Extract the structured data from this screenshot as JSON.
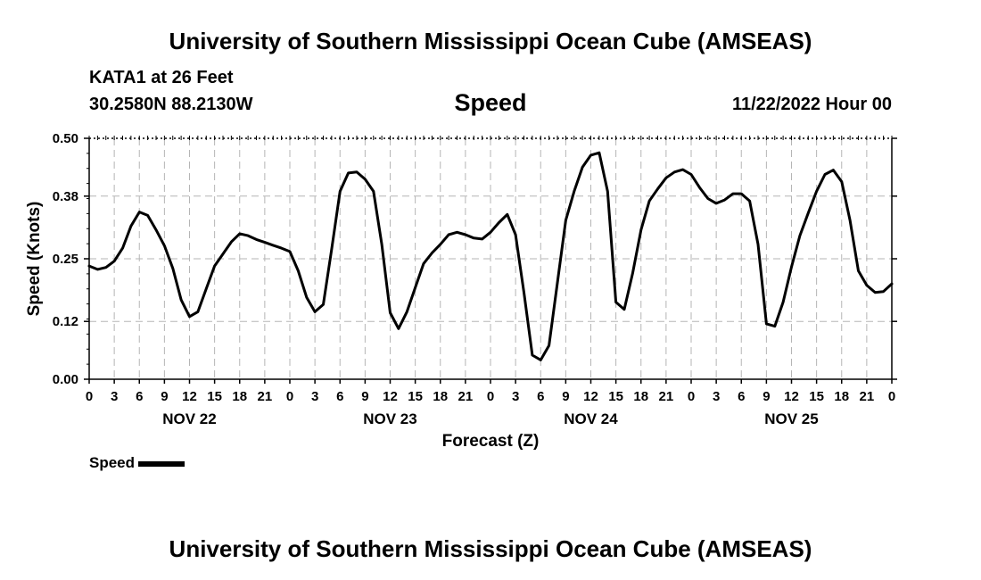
{
  "header": {
    "title_top": "University of Southern Mississippi Ocean Cube (AMSEAS)",
    "title_bottom": "University of Southern Mississippi Ocean Cube (AMSEAS)",
    "station": "KATA1 at 26 Feet",
    "coords": "30.2580N  88.2130W",
    "datetime": "11/22/2022 Hour 00"
  },
  "legend": {
    "label": "Speed"
  },
  "chart_data": {
    "type": "line",
    "title": "Speed",
    "xlabel": "Forecast (Z)",
    "ylabel": "Speed (Knots)",
    "ylim": [
      0,
      0.5
    ],
    "yticks": [
      0.0,
      0.12,
      0.25,
      0.38,
      0.5
    ],
    "ytick_labels": [
      "0.00",
      "0.12",
      "0.25",
      "0.38",
      "0.50"
    ],
    "xlim": [
      0,
      96
    ],
    "xticks": [
      0,
      3,
      6,
      9,
      12,
      15,
      18,
      21,
      24,
      27,
      30,
      33,
      36,
      39,
      42,
      45,
      48,
      51,
      54,
      57,
      60,
      63,
      66,
      69,
      72,
      75,
      78,
      81,
      84,
      87,
      90,
      93,
      96
    ],
    "xtick_labels": [
      "0",
      "3",
      "6",
      "9",
      "12",
      "15",
      "18",
      "21",
      "0",
      "3",
      "6",
      "9",
      "12",
      "15",
      "18",
      "21",
      "0",
      "3",
      "6",
      "9",
      "12",
      "15",
      "18",
      "21",
      "0",
      "3",
      "6",
      "9",
      "12",
      "15",
      "18",
      "21",
      "0"
    ],
    "day_labels": [
      {
        "x": 12,
        "label": "NOV 22"
      },
      {
        "x": 36,
        "label": "NOV 23"
      },
      {
        "x": 60,
        "label": "NOV 24"
      },
      {
        "x": 84,
        "label": "NOV 25"
      }
    ],
    "grid": true,
    "legend_position": "bottom-left",
    "series": [
      {
        "name": "Speed",
        "x": [
          0,
          1,
          2,
          3,
          4,
          5,
          6,
          7,
          8,
          9,
          10,
          11,
          12,
          13,
          14,
          15,
          16,
          17,
          18,
          19,
          20,
          21,
          22,
          23,
          24,
          25,
          26,
          27,
          28,
          29,
          30,
          31,
          32,
          33,
          34,
          35,
          36,
          37,
          38,
          39,
          40,
          41,
          42,
          43,
          44,
          45,
          46,
          47,
          48,
          49,
          50,
          51,
          52,
          53,
          54,
          55,
          56,
          57,
          58,
          59,
          60,
          61,
          62,
          63,
          64,
          65,
          66,
          67,
          68,
          69,
          70,
          71,
          72,
          73,
          74,
          75,
          76,
          77,
          78,
          79,
          80,
          81,
          82,
          83,
          84,
          85,
          86,
          87,
          88,
          89,
          90,
          91,
          92,
          93,
          94,
          95,
          96
        ],
        "values": [
          0.235,
          0.228,
          0.232,
          0.245,
          0.272,
          0.318,
          0.347,
          0.34,
          0.31,
          0.277,
          0.23,
          0.165,
          0.13,
          0.14,
          0.188,
          0.235,
          0.26,
          0.285,
          0.302,
          0.298,
          0.29,
          0.284,
          0.278,
          0.272,
          0.265,
          0.225,
          0.17,
          0.14,
          0.155,
          0.27,
          0.39,
          0.428,
          0.43,
          0.415,
          0.39,
          0.28,
          0.138,
          0.105,
          0.14,
          0.19,
          0.24,
          0.262,
          0.28,
          0.3,
          0.305,
          0.3,
          0.293,
          0.291,
          0.305,
          0.325,
          0.342,
          0.3,
          0.18,
          0.05,
          0.04,
          0.07,
          0.2,
          0.33,
          0.39,
          0.44,
          0.465,
          0.47,
          0.39,
          0.16,
          0.145,
          0.22,
          0.31,
          0.37,
          0.395,
          0.418,
          0.43,
          0.435,
          0.425,
          0.398,
          0.375,
          0.365,
          0.372,
          0.385,
          0.385,
          0.37,
          0.28,
          0.115,
          0.11,
          0.16,
          0.233,
          0.298,
          0.345,
          0.39,
          0.425,
          0.434,
          0.41,
          0.33,
          0.225,
          0.195,
          0.18,
          0.182,
          0.198
        ]
      }
    ]
  }
}
